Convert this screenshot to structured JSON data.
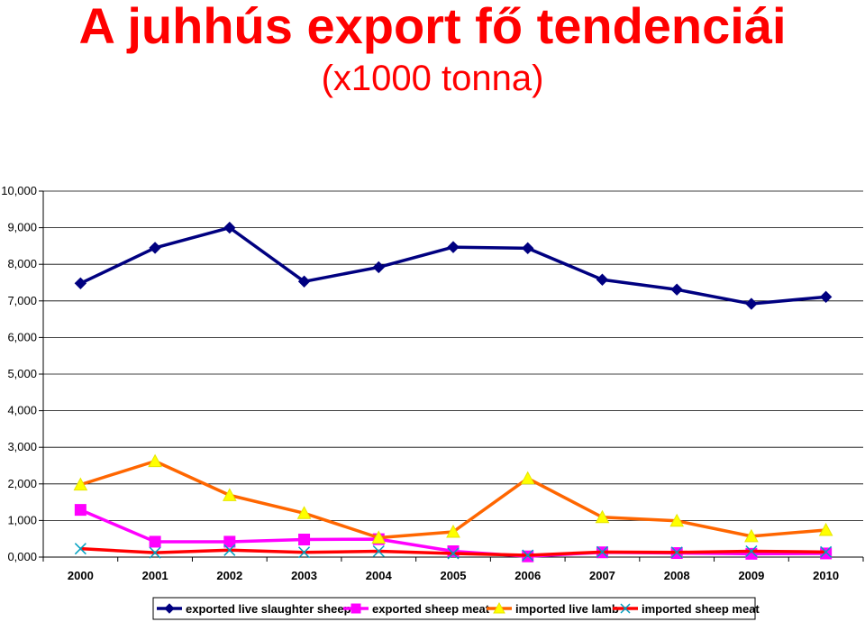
{
  "title": "A juhhús export fő tendenciái",
  "subtitle": "(x1000 tonna)",
  "chart_data": {
    "type": "line",
    "categories": [
      "2000",
      "2001",
      "2002",
      "2003",
      "2004",
      "2005",
      "2006",
      "2007",
      "2008",
      "2009",
      "2010"
    ],
    "ylim": [
      0,
      10000
    ],
    "yticks": [
      0,
      1000,
      2000,
      3000,
      4000,
      5000,
      6000,
      7000,
      8000,
      9000,
      10000
    ],
    "ytick_labels": [
      "0,000",
      "1,000",
      "2,000",
      "3,000",
      "4,000",
      "5,000",
      "6,000",
      "7,000",
      "8,000",
      "9,000",
      "10,000"
    ],
    "grid": "horizontal",
    "legend_position": "bottom",
    "series": [
      {
        "name": "exported live slaughter sheep",
        "color": "#000080",
        "marker": "diamond",
        "values": [
          7480,
          8450,
          9000,
          7530,
          7920,
          8470,
          8440,
          7580,
          7310,
          6920,
          7110
        ]
      },
      {
        "name": "exported sheep meat",
        "color": "#ff00ff",
        "marker": "square",
        "values": [
          1290,
          420,
          420,
          480,
          490,
          160,
          20,
          130,
          110,
          90,
          100
        ]
      },
      {
        "name": "imported live lamb",
        "color": "#ff6600",
        "marker": "triangle",
        "values": [
          1980,
          2620,
          1690,
          1200,
          530,
          690,
          2150,
          1090,
          990,
          570,
          740
        ]
      },
      {
        "name": "imported sheep meat",
        "color": "#ff0000",
        "marker": "x",
        "markerColor": "#00a0c0",
        "values": [
          230,
          120,
          190,
          130,
          160,
          100,
          50,
          140,
          130,
          160,
          140
        ]
      }
    ]
  }
}
